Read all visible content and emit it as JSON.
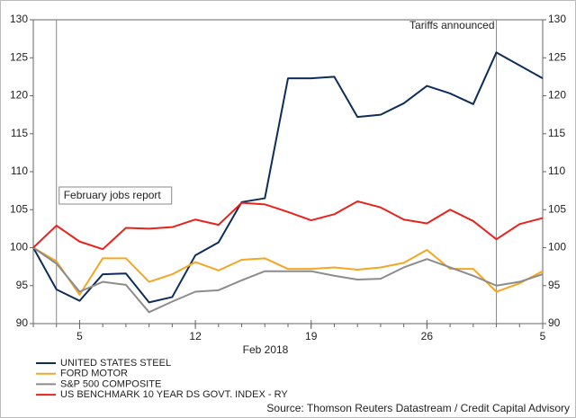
{
  "chart_data": {
    "type": "line",
    "categories": [
      null,
      null,
      "5",
      null,
      null,
      null,
      null,
      "12",
      null,
      null,
      null,
      null,
      "19",
      null,
      null,
      null,
      null,
      "26",
      null,
      null,
      null,
      null,
      "5"
    ],
    "xlabel": "Feb 2018",
    "ylim": [
      90,
      130
    ],
    "yticks": [
      90,
      95,
      100,
      105,
      110,
      115,
      120,
      125,
      130
    ],
    "series": [
      {
        "name": "UNITED STATES STEEL",
        "color": "#0f2d5a",
        "values": [
          100,
          94.5,
          93,
          96.5,
          96.6,
          92.8,
          93.5,
          99,
          100.7,
          106,
          106.5,
          122.3,
          122.3,
          122.5,
          117.2,
          117.5,
          119,
          121.3,
          120.3,
          118.9,
          125.7,
          124,
          122.3
        ]
      },
      {
        "name": "FORD MOTOR",
        "color": "#f5a623",
        "values": [
          100,
          98.2,
          93.8,
          98.6,
          98.6,
          95.5,
          96.5,
          98.1,
          97,
          98.4,
          98.6,
          97.2,
          97.2,
          97.4,
          97.1,
          97.4,
          98,
          99.7,
          97.2,
          97.2,
          94.2,
          95.3,
          96.9
        ]
      },
      {
        "name": "S&P 500 COMPOSITE",
        "color": "#8c8c8c",
        "values": [
          100,
          97.9,
          94.2,
          95.5,
          95.1,
          91.5,
          92.9,
          94.2,
          94.4,
          95.7,
          96.9,
          96.9,
          96.9,
          96.3,
          95.8,
          95.9,
          97.4,
          98.5,
          97.4,
          96.3,
          95,
          95.5,
          96.5
        ]
      },
      {
        "name": "US BENCHMARK 10 YEAR DS GOVT. INDEX - RY",
        "color": "#e8231b",
        "values": [
          100,
          102.9,
          100.8,
          99.8,
          102.6,
          102.5,
          102.7,
          103.7,
          103,
          105.9,
          105.7,
          104.7,
          103.6,
          104.4,
          106.1,
          105.3,
          103.7,
          103.2,
          105,
          103.5,
          101.1,
          103.1,
          103.9
        ]
      }
    ],
    "annotations": [
      "February jobs report",
      "Tariffs announced"
    ],
    "source": "Source: Thomson Reuters Datastream / Credit Capital Advisory",
    "grid": false
  }
}
